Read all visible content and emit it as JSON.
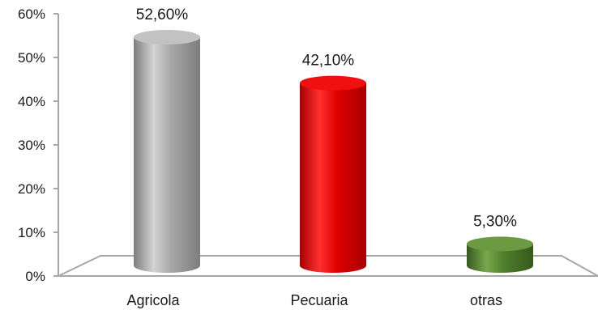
{
  "chart_data": {
    "type": "bar",
    "categories": [
      "Agricola",
      "Pecuaria",
      "otras"
    ],
    "values": [
      52.6,
      42.1,
      5.3
    ],
    "data_labels": [
      "52,60%",
      "42,10%",
      "5,30%"
    ],
    "ylim": [
      0,
      60
    ],
    "yticks": [
      0,
      10,
      20,
      30,
      40,
      50,
      60
    ],
    "ytick_labels": [
      "0%",
      "10%",
      "20%",
      "30%",
      "40%",
      "50%",
      "60%"
    ],
    "grid": false,
    "legend": "none",
    "title": "",
    "xlabel": "",
    "ylabel": ""
  },
  "colors": {
    "Agricola": {
      "light": "#d4d4d4",
      "mid": "#a8a8a8",
      "dark": "#7d7d7d",
      "top": "#c2c2c2"
    },
    "Pecuaria": {
      "light": "#ff3030",
      "mid": "#e00000",
      "dark": "#a80000",
      "top": "#f01010"
    },
    "otras": {
      "light": "#7aa84e",
      "mid": "#4f7f2c",
      "dark": "#355a1c",
      "top": "#6c9a42"
    },
    "axis": "#a6a6a6"
  }
}
